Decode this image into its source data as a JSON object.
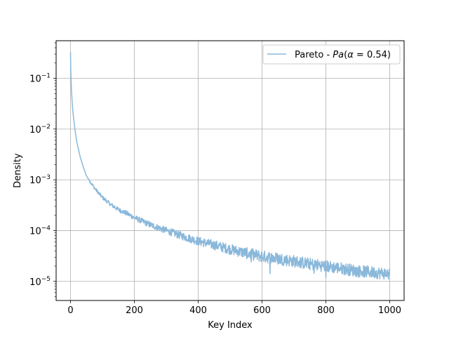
{
  "chart_data": {
    "type": "line",
    "title": "",
    "xlabel": "Key Index",
    "ylabel": "Density",
    "xlim": [
      -45,
      1045
    ],
    "ylim": [
      4.2e-06,
      0.55
    ],
    "yscale": "log",
    "grid": true,
    "legend_position": "top-right",
    "x_ticks": [
      0,
      200,
      400,
      600,
      800,
      1000
    ],
    "x_tick_labels": [
      "0",
      "200",
      "400",
      "600",
      "800",
      "1000"
    ],
    "y_ticks": [
      1e-05,
      0.0001,
      0.001,
      0.01,
      0.1
    ],
    "y_tick_labels": [
      {
        "base": "10",
        "exp": "−5"
      },
      {
        "base": "10",
        "exp": "−4"
      },
      {
        "base": "10",
        "exp": "−3"
      },
      {
        "base": "10",
        "exp": "−2"
      },
      {
        "base": "10",
        "exp": "−1"
      }
    ],
    "series": [
      {
        "name": "Pareto - Pa(α = 0.54)",
        "legend": {
          "prefix": "Pareto - ",
          "formula": "Pa",
          "open": "(",
          "alpha": "α",
          "eq": " = ",
          "value": "0.54",
          "close": ")"
        },
        "color": "#8ab8da",
        "x": [
          0,
          1,
          2,
          3,
          5,
          7,
          10,
          15,
          20,
          30,
          40,
          50,
          60,
          80,
          100,
          125,
          150,
          175,
          200,
          250,
          300,
          350,
          400,
          450,
          500,
          550,
          600,
          650,
          700,
          750,
          800,
          850,
          900,
          950,
          1000
        ],
        "values": [
          0.33,
          0.14,
          0.085,
          0.058,
          0.036,
          0.024,
          0.016,
          0.0088,
          0.0055,
          0.0029,
          0.0018,
          0.0012,
          0.00095,
          0.00063,
          0.00045,
          0.00033,
          0.00026,
          0.00022,
          0.00018,
          0.00013,
          0.0001,
          7.8e-05,
          6.2e-05,
          5.2e-05,
          4.3e-05,
          3.6e-05,
          3.1e-05,
          2.8e-05,
          2.5e-05,
          2.2e-05,
          2e-05,
          1.8e-05,
          1.6e-05,
          1.5e-05,
          1.4e-05
        ]
      }
    ]
  }
}
